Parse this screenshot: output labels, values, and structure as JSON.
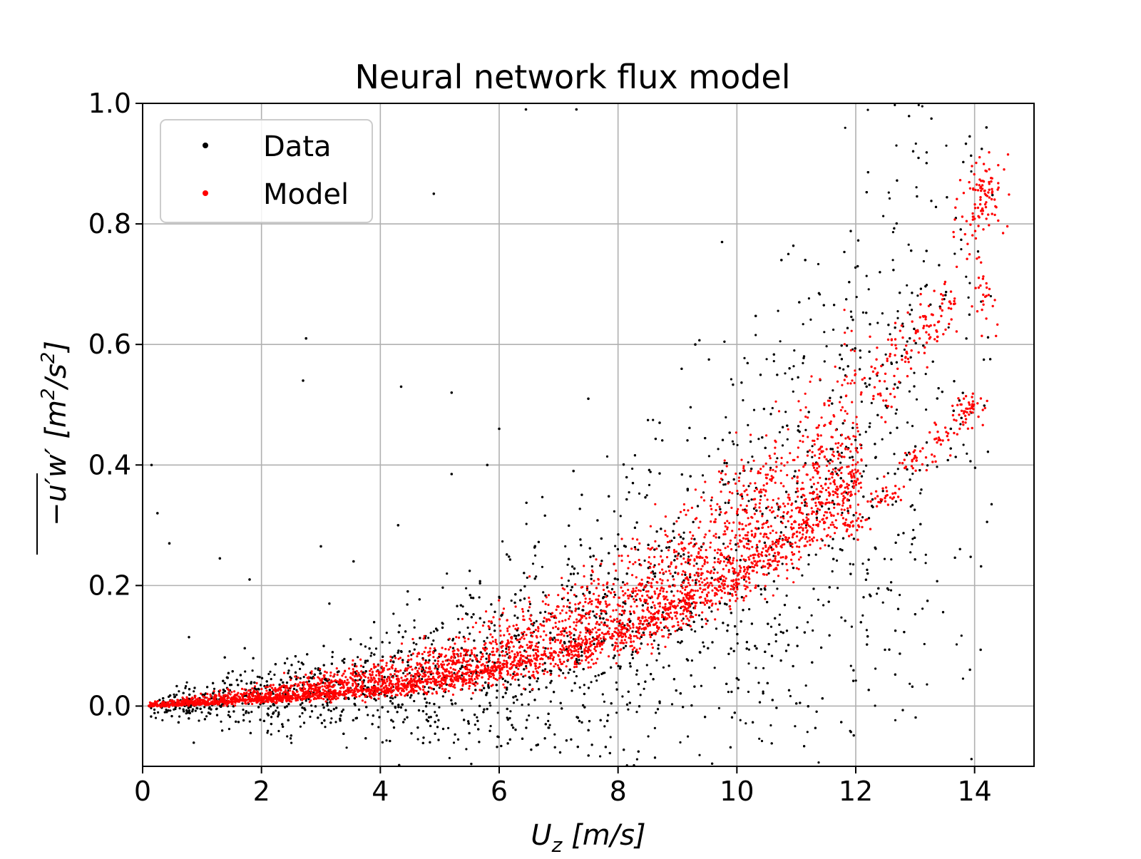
{
  "chart_data": {
    "type": "scatter",
    "title": "Neural network flux model",
    "xlabel": {
      "main": "U",
      "sub": "z",
      "unit": " [m/s]"
    },
    "ylabel": {
      "prefix": "−u′w′ [m",
      "sup1": "2",
      "mid": "/s",
      "sup2": "2",
      "suffix": "]"
    },
    "xlim": [
      0,
      15
    ],
    "ylim": [
      -0.1,
      1.0
    ],
    "xticks": [
      "0",
      "2",
      "4",
      "6",
      "8",
      "10",
      "12",
      "14"
    ],
    "yticks": [
      "0.0",
      "0.2",
      "0.4",
      "0.6",
      "0.8",
      "1.0"
    ],
    "grid": true,
    "legend": {
      "position": "top-left"
    },
    "series": [
      {
        "name": "Data",
        "color": "#000000",
        "trend": [
          [
            0.0,
            0.0
          ],
          [
            1.0,
            0.006
          ],
          [
            2.0,
            0.013
          ],
          [
            3.0,
            0.022
          ],
          [
            4.0,
            0.032
          ],
          [
            5.0,
            0.048
          ],
          [
            6.0,
            0.068
          ],
          [
            7.0,
            0.095
          ],
          [
            8.0,
            0.13
          ],
          [
            9.0,
            0.175
          ],
          [
            10.0,
            0.235
          ],
          [
            11.0,
            0.3
          ],
          [
            12.0,
            0.4
          ],
          [
            13.0,
            0.52
          ],
          [
            14.0,
            0.68
          ],
          [
            14.3,
            0.78
          ]
        ],
        "outliers": [
          [
            0.15,
            0.4
          ],
          [
            0.25,
            0.32
          ],
          [
            2.75,
            0.61
          ],
          [
            2.7,
            0.54
          ],
          [
            4.35,
            0.53
          ],
          [
            4.9,
            0.85
          ],
          [
            5.2,
            0.52
          ],
          [
            6.45,
            0.99
          ],
          [
            7.3,
            0.99
          ],
          [
            7.5,
            0.51
          ],
          [
            6.0,
            0.46
          ],
          [
            9.75,
            0.77
          ],
          [
            10.75,
            0.74
          ],
          [
            11.15,
            0.74
          ],
          [
            11.05,
            0.67
          ],
          [
            9.3,
            0.6
          ],
          [
            8.7,
            0.47
          ],
          [
            5.8,
            0.4
          ],
          [
            3.0,
            0.265
          ],
          [
            1.3,
            0.245
          ],
          [
            1.8,
            0.21
          ],
          [
            0.45,
            0.27
          ],
          [
            7.25,
            0.39
          ],
          [
            5.2,
            0.385
          ],
          [
            4.3,
            0.3
          ],
          [
            3.55,
            0.24
          ],
          [
            10.0,
            0.046
          ],
          [
            10.6,
            0.01
          ],
          [
            12.2,
            0.22
          ],
          [
            13.6,
            0.46
          ],
          [
            14.2,
            0.96
          ]
        ]
      },
      {
        "name": "Model",
        "color": "#ff0000",
        "trend": [
          [
            0.0,
            0.0
          ],
          [
            1.0,
            0.006
          ],
          [
            2.0,
            0.013
          ],
          [
            3.0,
            0.022
          ],
          [
            4.0,
            0.032
          ],
          [
            5.0,
            0.048
          ],
          [
            6.0,
            0.068
          ],
          [
            7.0,
            0.095
          ],
          [
            8.0,
            0.13
          ],
          [
            9.0,
            0.175
          ],
          [
            10.0,
            0.235
          ],
          [
            11.0,
            0.3
          ],
          [
            12.0,
            0.4
          ],
          [
            13.0,
            0.52
          ],
          [
            14.0,
            0.68
          ],
          [
            14.3,
            0.78
          ]
        ],
        "high_cluster": [
          [
            12.4,
            0.54
          ],
          [
            12.8,
            0.6
          ],
          [
            13.2,
            0.64
          ],
          [
            13.5,
            0.66
          ],
          [
            13.9,
            0.8
          ],
          [
            14.2,
            0.84
          ],
          [
            14.2,
            0.86
          ],
          [
            14.15,
            0.68
          ]
        ],
        "low_branch": [
          [
            12.0,
            0.3
          ],
          [
            12.5,
            0.35
          ],
          [
            13.0,
            0.41
          ],
          [
            13.5,
            0.45
          ],
          [
            13.8,
            0.48
          ],
          [
            14.0,
            0.5
          ]
        ]
      }
    ]
  }
}
